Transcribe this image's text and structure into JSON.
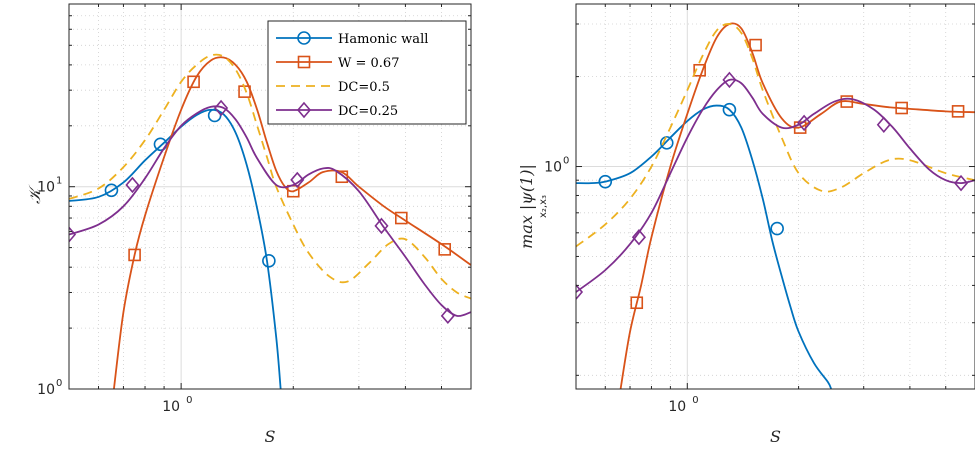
{
  "chart_data": [
    {
      "type": "line",
      "xlabel": "S",
      "ylabel": "𝒦",
      "xscale": "log",
      "yscale": "log",
      "xlim": [
        0.5,
        6
      ],
      "ylim": [
        1,
        80
      ],
      "grid": true,
      "legend_position": "top-right",
      "xticks": [
        {
          "value": 1,
          "base": "10",
          "exp": "0"
        }
      ],
      "yticks": [
        {
          "value": 1,
          "base": "10",
          "exp": "0"
        },
        {
          "value": 10,
          "base": "10",
          "exp": "1"
        }
      ],
      "series": [
        {
          "name": "Hamonic wall",
          "color": "#0072BD",
          "dash": "solid",
          "marker": "circle",
          "x": [
            0.5,
            0.6,
            0.7,
            0.8,
            0.9,
            1.0,
            1.1,
            1.2,
            1.3,
            1.4,
            1.5,
            1.6,
            1.7,
            1.8,
            1.85
          ],
          "y": [
            8.5,
            8.9,
            10.5,
            13.5,
            16.5,
            19.8,
            22.6,
            24.0,
            22.8,
            18.5,
            12.8,
            7.8,
            4.3,
            1.8,
            1.0
          ],
          "markers_x": [
            0.65,
            0.88,
            1.23,
            1.72
          ],
          "markers_y": [
            9.6,
            16.2,
            22.5,
            4.3
          ]
        },
        {
          "name": "W = 0.67",
          "color": "#D95319",
          "dash": "solid",
          "marker": "square",
          "x": [
            0.66,
            0.7,
            0.75,
            0.8,
            0.9,
            1.0,
            1.1,
            1.2,
            1.3,
            1.4,
            1.5,
            1.6,
            1.7,
            1.8,
            1.9,
            2.0,
            2.2,
            2.4,
            2.7,
            3.0,
            3.5,
            4.0,
            5.0,
            6.0
          ],
          "y": [
            1.0,
            2.4,
            4.6,
            7.2,
            14.0,
            24.0,
            35.0,
            42.0,
            43.5,
            40.0,
            33.0,
            24.0,
            16.5,
            12.0,
            10.0,
            9.5,
            10.5,
            11.8,
            11.8,
            10.0,
            8.0,
            6.8,
            5.2,
            4.1
          ],
          "markers_x": [
            0.75,
            1.08,
            1.48,
            2.0,
            2.7,
            3.9,
            5.1
          ],
          "markers_y": [
            4.6,
            33.0,
            29.5,
            9.5,
            11.2,
            7.0,
            4.9
          ]
        },
        {
          "name": "DC=0.5",
          "color": "#EDB120",
          "dash": "dashed",
          "marker": "none",
          "x": [
            0.5,
            0.6,
            0.7,
            0.8,
            0.9,
            1.0,
            1.1,
            1.2,
            1.3,
            1.4,
            1.5,
            1.6,
            1.7,
            1.8,
            2.0,
            2.2,
            2.5,
            2.8,
            3.2,
            3.6,
            4.0,
            4.5,
            5.0,
            5.5,
            6.0
          ],
          "y": [
            8.7,
            9.8,
            12.5,
            17.0,
            24.0,
            33.0,
            40.0,
            44.5,
            44.0,
            38.0,
            29.0,
            20.0,
            14.0,
            10.0,
            6.5,
            4.7,
            3.6,
            3.4,
            4.2,
            5.2,
            5.5,
            4.5,
            3.5,
            3.0,
            2.8
          ]
        },
        {
          "name": "DC=0.25",
          "color": "#7E2F8E",
          "dash": "solid",
          "marker": "diamond",
          "x": [
            0.5,
            0.6,
            0.7,
            0.8,
            0.9,
            1.0,
            1.1,
            1.2,
            1.3,
            1.4,
            1.5,
            1.6,
            1.8,
            2.0,
            2.2,
            2.4,
            2.6,
            3.0,
            3.5,
            4.0,
            4.5,
            5.0,
            5.5,
            6.0
          ],
          "y": [
            5.8,
            6.5,
            8.0,
            11.0,
            15.5,
            20.0,
            23.0,
            24.8,
            24.5,
            21.5,
            17.5,
            13.8,
            10.2,
            10.2,
            11.5,
            12.3,
            12.0,
            9.5,
            6.3,
            4.5,
            3.3,
            2.6,
            2.3,
            2.4
          ],
          "markers_x": [
            0.5,
            0.74,
            1.28,
            2.05,
            3.45,
            5.2
          ],
          "markers_y": [
            5.8,
            10.2,
            24.5,
            10.8,
            6.4,
            2.3
          ]
        }
      ]
    },
    {
      "type": "line",
      "xlabel": "S",
      "ylabel": "max |ψ(1)|",
      "ylabel_sub": "x₂,x₃",
      "xscale": "log",
      "yscale": "log",
      "xlim": [
        0.5,
        6
      ],
      "ylim": [
        0.18,
        3.5
      ],
      "grid": true,
      "xticks": [
        {
          "value": 1,
          "base": "10",
          "exp": "0"
        }
      ],
      "yticks": [
        {
          "value": 1,
          "base": "10",
          "exp": "0"
        }
      ],
      "series": [
        {
          "name": "Hamonic wall",
          "color": "#0072BD",
          "dash": "solid",
          "marker": "circle",
          "x": [
            0.5,
            0.55,
            0.6,
            0.7,
            0.8,
            0.9,
            1.0,
            1.1,
            1.2,
            1.3,
            1.4,
            1.5,
            1.6,
            1.7,
            1.8,
            1.9,
            2.0,
            2.2,
            2.4,
            2.45
          ],
          "y": [
            0.88,
            0.88,
            0.89,
            0.95,
            1.08,
            1.25,
            1.42,
            1.55,
            1.6,
            1.55,
            1.35,
            1.05,
            0.78,
            0.56,
            0.43,
            0.34,
            0.28,
            0.22,
            0.19,
            0.18
          ],
          "markers_x": [
            0.6,
            0.88,
            1.3,
            1.75
          ],
          "markers_y": [
            0.89,
            1.2,
            1.55,
            0.62
          ]
        },
        {
          "name": "W = 0.67",
          "color": "#D95319",
          "dash": "solid",
          "marker": "square",
          "x": [
            0.66,
            0.7,
            0.75,
            0.8,
            0.9,
            1.0,
            1.1,
            1.2,
            1.3,
            1.4,
            1.5,
            1.6,
            1.8,
            2.0,
            2.3,
            2.6,
            3.0,
            3.5,
            4.0,
            5.0,
            6.0
          ],
          "y": [
            0.18,
            0.28,
            0.4,
            0.58,
            1.0,
            1.5,
            2.1,
            2.7,
            3.0,
            2.9,
            2.4,
            1.9,
            1.45,
            1.35,
            1.5,
            1.65,
            1.62,
            1.58,
            1.56,
            1.53,
            1.52
          ],
          "markers_x": [
            0.73,
            1.08,
            1.53,
            2.02,
            2.7,
            3.8,
            5.4
          ],
          "markers_y": [
            0.35,
            2.1,
            2.55,
            1.35,
            1.65,
            1.57,
            1.53
          ]
        },
        {
          "name": "DC=0.5",
          "color": "#EDB120",
          "dash": "dashed",
          "marker": "none",
          "x": [
            0.5,
            0.6,
            0.7,
            0.8,
            0.9,
            1.0,
            1.1,
            1.2,
            1.3,
            1.4,
            1.5,
            1.6,
            1.8,
            2.0,
            2.3,
            2.6,
            3.0,
            3.5,
            4.0,
            5.0,
            6.0
          ],
          "y": [
            0.54,
            0.64,
            0.78,
            1.0,
            1.35,
            1.8,
            2.35,
            2.85,
            3.0,
            2.8,
            2.3,
            1.8,
            1.25,
            0.95,
            0.83,
            0.85,
            0.95,
            1.05,
            1.05,
            0.95,
            0.9
          ],
          "markers_x": [],
          "markers_y": []
        },
        {
          "name": "DC=0.25",
          "color": "#7E2F8E",
          "dash": "solid",
          "marker": "diamond",
          "x": [
            0.5,
            0.6,
            0.7,
            0.8,
            0.9,
            1.0,
            1.1,
            1.2,
            1.3,
            1.4,
            1.5,
            1.6,
            1.8,
            2.0,
            2.2,
            2.5,
            2.8,
            3.2,
            3.6,
            4.0,
            4.5,
            5.0,
            5.5,
            6.0
          ],
          "y": [
            0.38,
            0.45,
            0.55,
            0.7,
            0.95,
            1.25,
            1.55,
            1.8,
            1.95,
            1.9,
            1.7,
            1.5,
            1.35,
            1.38,
            1.5,
            1.65,
            1.68,
            1.55,
            1.35,
            1.15,
            0.98,
            0.9,
            0.88,
            0.9
          ],
          "markers_x": [
            0.5,
            0.74,
            1.3,
            2.07,
            3.4,
            5.5
          ],
          "markers_y": [
            0.38,
            0.58,
            1.95,
            1.4,
            1.38,
            0.88
          ]
        }
      ]
    }
  ]
}
